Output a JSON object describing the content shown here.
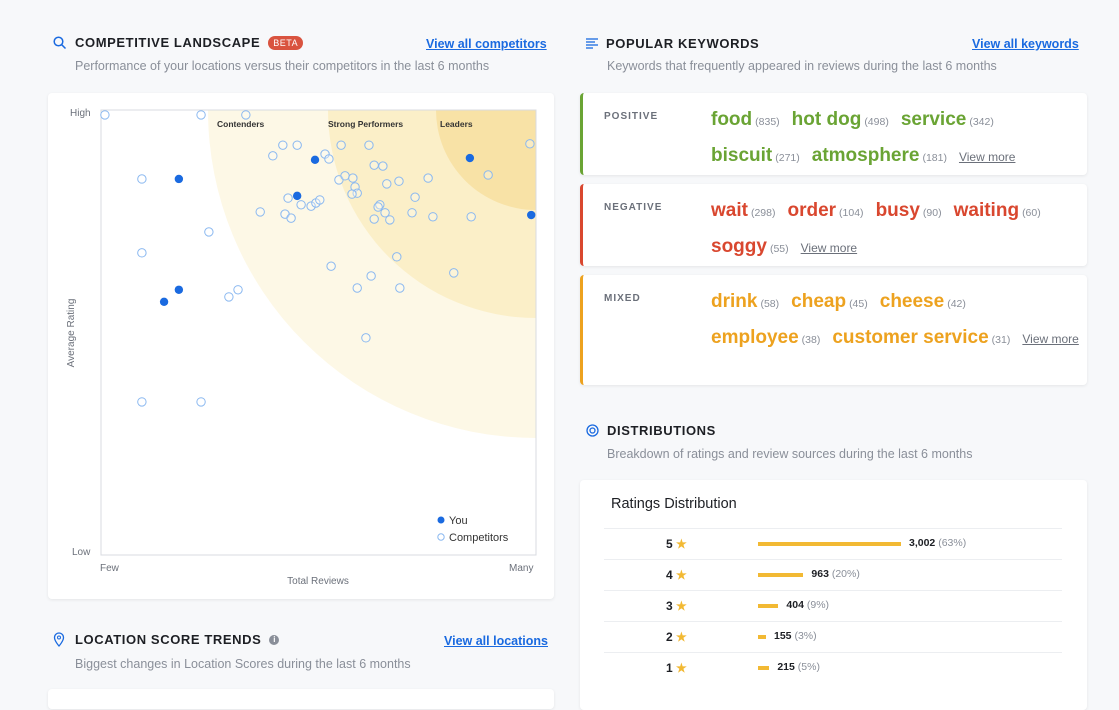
{
  "competitive": {
    "title": "COMPETITIVE LANDSCAPE",
    "badge": "BETA",
    "link": "View all competitors",
    "subtitle": "Performance of your locations versus their competitors in the last 6 months"
  },
  "chart_data": {
    "type": "scatter",
    "xlabel": "Total Reviews",
    "ylabel": "Average Rating",
    "x_ticks": [
      "Few",
      "Many"
    ],
    "y_ticks": [
      "High",
      "Low"
    ],
    "xlim": [
      0,
      100
    ],
    "ylim": [
      0,
      100
    ],
    "zones": [
      "Contenders",
      "Strong Performers",
      "Leaders"
    ],
    "legend": {
      "position": "bottom-right",
      "you": "You",
      "competitors": "Competitors"
    },
    "series": [
      {
        "name": "You",
        "color": "#1a6ae0",
        "points": [
          [
            17.9,
            84.5
          ],
          [
            49.2,
            88.8
          ],
          [
            45.1,
            80.7
          ],
          [
            84.8,
            89.2
          ],
          [
            98.9,
            76.4
          ],
          [
            17.9,
            59.6
          ],
          [
            14.5,
            56.9
          ]
        ]
      },
      {
        "name": "Competitors",
        "color": "#8ab8f0",
        "points": [
          [
            0.9,
            98.9
          ],
          [
            23,
            98.9
          ],
          [
            33.3,
            98.9
          ],
          [
            9.4,
            84.5
          ],
          [
            98.6,
            92.4
          ],
          [
            89,
            85.4
          ],
          [
            39.5,
            89.7
          ],
          [
            41.8,
            92.1
          ],
          [
            45.1,
            92.1
          ],
          [
            51.5,
            90.1
          ],
          [
            52.4,
            89
          ],
          [
            55.2,
            92.1
          ],
          [
            61.6,
            92.1
          ],
          [
            62.8,
            87.6
          ],
          [
            64.8,
            87.4
          ],
          [
            54.7,
            84.3
          ],
          [
            56.1,
            85.2
          ],
          [
            57.9,
            84.7
          ],
          [
            58.4,
            82.7
          ],
          [
            58.9,
            81.3
          ],
          [
            57.7,
            81.1
          ],
          [
            65.7,
            83.4
          ],
          [
            68.5,
            84
          ],
          [
            75.2,
            84.7
          ],
          [
            72.2,
            80.4
          ],
          [
            64.1,
            78.7
          ],
          [
            65.3,
            76.9
          ],
          [
            63.7,
            78.2
          ],
          [
            36.6,
            77.1
          ],
          [
            43,
            80.2
          ],
          [
            46,
            78.7
          ],
          [
            42.3,
            76.6
          ],
          [
            43.7,
            75.7
          ],
          [
            48.3,
            78.4
          ],
          [
            49.4,
            79.1
          ],
          [
            50.3,
            79.8
          ],
          [
            62.8,
            75.5
          ],
          [
            66.4,
            75.3
          ],
          [
            71.5,
            76.9
          ],
          [
            76.3,
            76
          ],
          [
            85.1,
            76
          ],
          [
            24.8,
            72.6
          ],
          [
            9.4,
            67.9
          ],
          [
            52.9,
            64.9
          ],
          [
            62.1,
            62.7
          ],
          [
            68,
            67
          ],
          [
            81.1,
            63.4
          ],
          [
            58.9,
            60
          ],
          [
            68.7,
            60
          ],
          [
            31.5,
            59.6
          ],
          [
            29.4,
            58
          ],
          [
            60.9,
            48.8
          ],
          [
            9.4,
            34.4
          ],
          [
            23,
            34.4
          ]
        ]
      }
    ]
  },
  "trends": {
    "title": "LOCATION SCORE TRENDS",
    "link": "View all locations",
    "subtitle": "Biggest changes in Location Scores during the last 6 months"
  },
  "keywords": {
    "title": "POPULAR KEYWORDS",
    "link": "View all keywords",
    "subtitle": "Keywords that frequently appeared in reviews during the last 6 months",
    "view_more": "View more",
    "groups": [
      {
        "label": "POSITIVE",
        "color": "#6aa434",
        "items": [
          [
            "food",
            "(835)"
          ],
          [
            "hot dog",
            "(498)"
          ],
          [
            "service",
            "(342)"
          ],
          [
            "biscuit",
            "(271)"
          ],
          [
            "atmosphere",
            "(181)"
          ]
        ]
      },
      {
        "label": "NEGATIVE",
        "color": "#d9472f",
        "items": [
          [
            "wait",
            "(298)"
          ],
          [
            "order",
            "(104)"
          ],
          [
            "busy",
            "(90)"
          ],
          [
            "waiting",
            "(60)"
          ],
          [
            "soggy",
            "(55)"
          ]
        ]
      },
      {
        "label": "MIXED",
        "color": "#eda21f",
        "items": [
          [
            "drink",
            "(58)"
          ],
          [
            "cheap",
            "(45)"
          ],
          [
            "cheese",
            "(42)"
          ],
          [
            "employee",
            "(38)"
          ],
          [
            "customer service",
            "(31)"
          ]
        ]
      }
    ]
  },
  "distributions": {
    "title": "DISTRIBUTIONS",
    "subtitle": "Breakdown of ratings and review sources during the last 6 months",
    "card_title": "Ratings Distribution",
    "rows": [
      {
        "stars": "5",
        "count": "3,002",
        "pct": "(63%)",
        "fraction": 0.63
      },
      {
        "stars": "4",
        "count": "963",
        "pct": "(20%)",
        "fraction": 0.2
      },
      {
        "stars": "3",
        "count": "404",
        "pct": "(9%)",
        "fraction": 0.09
      },
      {
        "stars": "2",
        "count": "155",
        "pct": "(3%)",
        "fraction": 0.03
      },
      {
        "stars": "1",
        "count": "215",
        "pct": "(5%)",
        "fraction": 0.05
      }
    ]
  }
}
